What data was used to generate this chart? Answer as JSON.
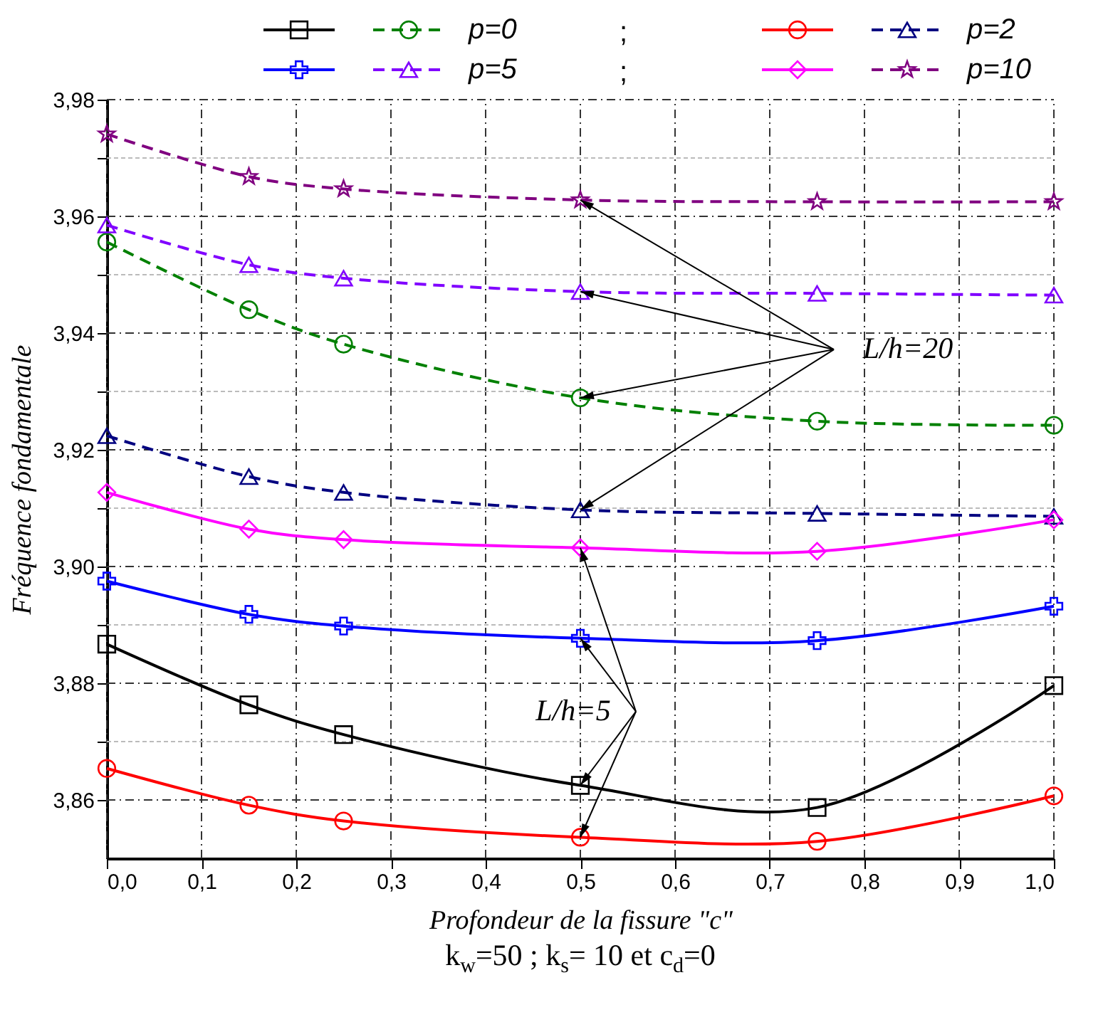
{
  "chart_data": {
    "type": "line",
    "xlabel": "Profondeur de la fissure \"c\"",
    "ylabel": "Fréquence fondamentale",
    "x": [
      0,
      0.15,
      0.25,
      0.5,
      0.75,
      1.0
    ],
    "series": [
      {
        "color": "#000000",
        "line_style": "solid",
        "marker": "square",
        "values": [
          3.8867,
          3.8763,
          3.8712,
          3.8625,
          3.8587,
          3.8796
        ]
      },
      {
        "name": "p=0",
        "color": "#008000",
        "line_style": "dashed",
        "marker": "circle",
        "values": [
          3.9556,
          3.944,
          3.9381,
          3.9289,
          3.9249,
          3.9242
        ]
      },
      {
        "color": "#ff0000",
        "line_style": "solid",
        "marker": "circle",
        "values": [
          3.8654,
          3.8591,
          3.8564,
          3.8536,
          3.8529,
          3.8607
        ]
      },
      {
        "name": "p=2",
        "color": "#000080",
        "line_style": "dashed",
        "marker": "triangle",
        "values": [
          3.9224,
          3.9154,
          3.9127,
          3.9097,
          3.9091,
          3.9086
        ]
      },
      {
        "color": "#0000ff",
        "line_style": "solid",
        "marker": "cross",
        "values": [
          3.8975,
          3.8918,
          3.8898,
          3.8877,
          3.8873,
          3.8932
        ]
      },
      {
        "name": "p=5",
        "color": "#8000ff",
        "line_style": "dashed",
        "marker": "triangle",
        "values": [
          3.9585,
          3.9517,
          3.9494,
          3.9471,
          3.9468,
          3.9465
        ]
      },
      {
        "color": "#ff00ff",
        "line_style": "solid",
        "marker": "diamond",
        "values": [
          3.9127,
          3.9064,
          3.9046,
          3.9032,
          3.9026,
          3.908
        ]
      },
      {
        "name": "p=10",
        "color": "#800080",
        "line_style": "dashed",
        "marker": "star",
        "values": [
          3.9741,
          3.9668,
          3.9647,
          3.9628,
          3.9625,
          3.9625
        ]
      }
    ],
    "xlim": [
      0,
      1.0
    ],
    "xticks": [
      {
        "value": 0,
        "label": "0,0"
      },
      {
        "value": 0.1,
        "label": "0,1"
      },
      {
        "value": 0.2,
        "label": "0,2"
      },
      {
        "value": 0.3,
        "label": "0,3"
      },
      {
        "value": 0.4,
        "label": "0,4"
      },
      {
        "value": 0.5,
        "label": "0,5"
      },
      {
        "value": 0.6,
        "label": "0,6"
      },
      {
        "value": 0.7,
        "label": "0,7"
      },
      {
        "value": 0.8,
        "label": "0,8"
      },
      {
        "value": 0.9,
        "label": "0,9"
      },
      {
        "value": 1.0,
        "label": "1,0"
      }
    ],
    "ylim": [
      3.85,
      3.98
    ],
    "yticks": [
      {
        "value": 3.86,
        "label": "3,86"
      },
      {
        "value": 3.87,
        "label": null
      },
      {
        "value": 3.88,
        "label": "3,88"
      },
      {
        "value": 3.89,
        "label": null
      },
      {
        "value": 3.9,
        "label": "3,90"
      },
      {
        "value": 3.91,
        "label": null
      },
      {
        "value": 3.92,
        "label": "3,92"
      },
      {
        "value": 3.93,
        "label": null
      },
      {
        "value": 3.94,
        "label": "3,94"
      },
      {
        "value": 3.95,
        "label": null
      },
      {
        "value": 3.96,
        "label": "3,96"
      },
      {
        "value": 3.97,
        "label": null
      },
      {
        "value": 3.98,
        "label": "3,98"
      }
    ],
    "grid": true,
    "legend": "top",
    "annotations": [
      ";",
      ";",
      {
        "text": "L/h=20",
        "x": 0.5,
        "y": 3.9628
      },
      {
        "text": "L/h=5",
        "x": 0.5,
        "y": 3.9032
      },
      "k$_{w}$=50 ; k$_{s}$= 10 et c$_{d}$=0"
    ]
  }
}
